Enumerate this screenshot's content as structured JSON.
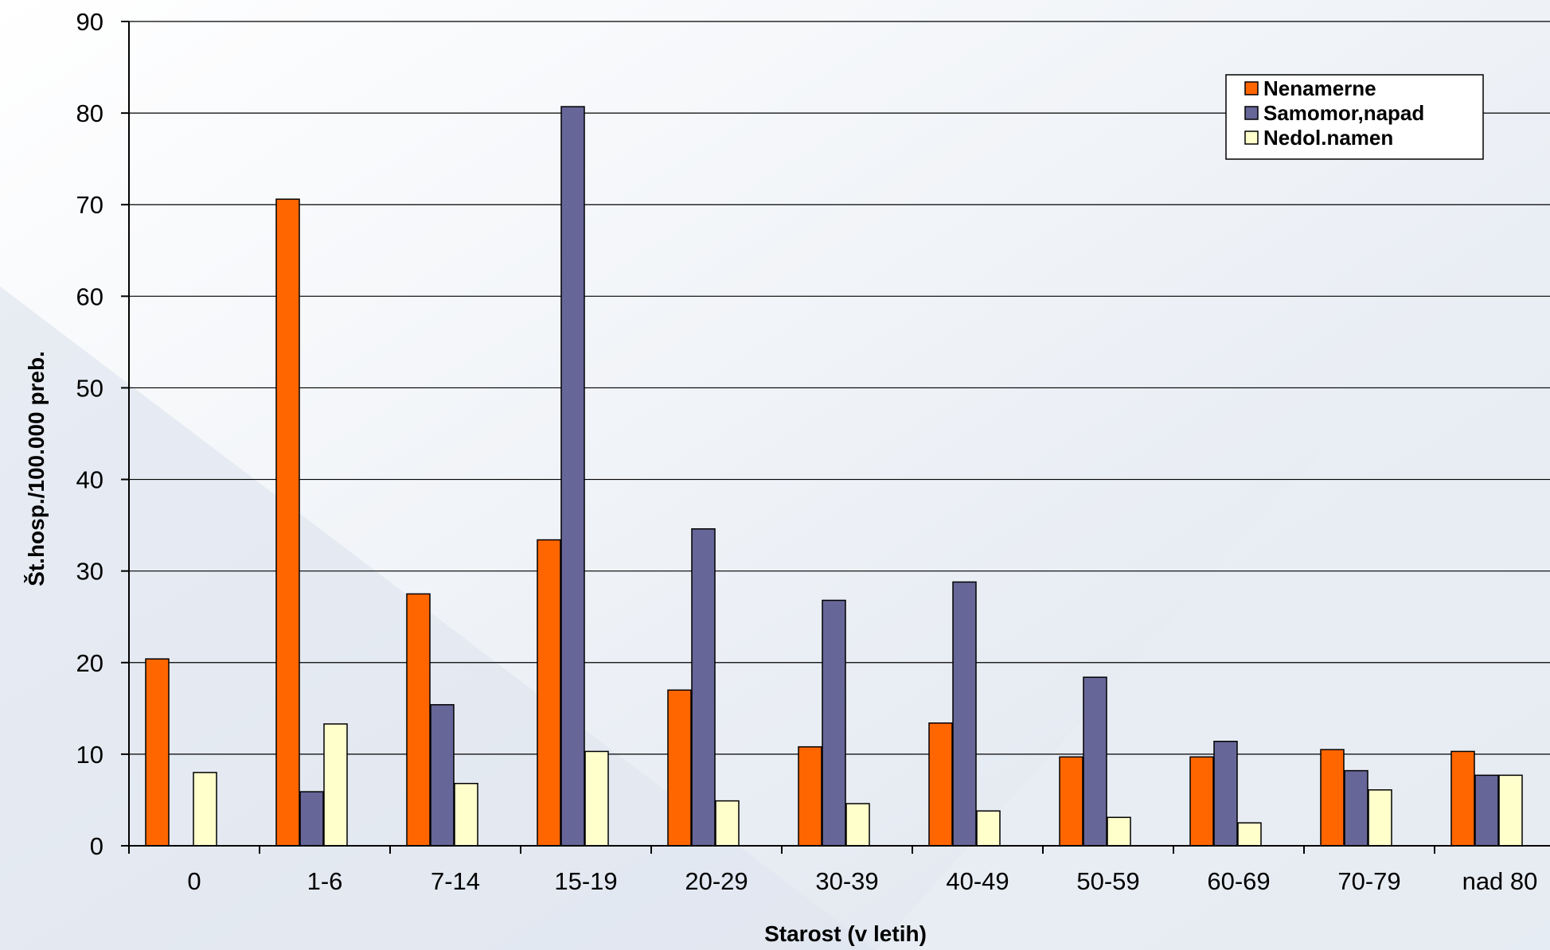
{
  "chart_data": {
    "type": "bar",
    "categories": [
      "0",
      "1-6",
      "7-14",
      "15-19",
      "20-29",
      "30-39",
      "40-49",
      "50-59",
      "60-69",
      "70-79",
      "nad 80"
    ],
    "series": [
      {
        "name": "Nenamerne",
        "color": "#ff6600",
        "values": [
          20.4,
          70.6,
          27.5,
          33.4,
          17.0,
          10.8,
          13.4,
          9.7,
          9.7,
          10.5,
          10.3
        ]
      },
      {
        "name": "Samomor,napad",
        "color": "#666699",
        "values": [
          0,
          5.9,
          15.4,
          80.7,
          34.6,
          26.8,
          28.8,
          18.4,
          11.4,
          8.2,
          7.7
        ]
      },
      {
        "name": "Nedol.namen",
        "color": "#ffffcc",
        "values": [
          8.0,
          13.3,
          6.8,
          10.3,
          4.9,
          4.6,
          3.8,
          3.1,
          2.5,
          6.1,
          7.7
        ]
      }
    ],
    "ylim": [
      0,
      90
    ],
    "yticks": [
      "0",
      "10",
      "20",
      "30",
      "40",
      "50",
      "60",
      "70",
      "80",
      "90"
    ],
    "xlabel": "Starost (v letih)",
    "ylabel": "Št.hosp./100.000 preb.",
    "grid": true,
    "legend_position": "top-right"
  }
}
